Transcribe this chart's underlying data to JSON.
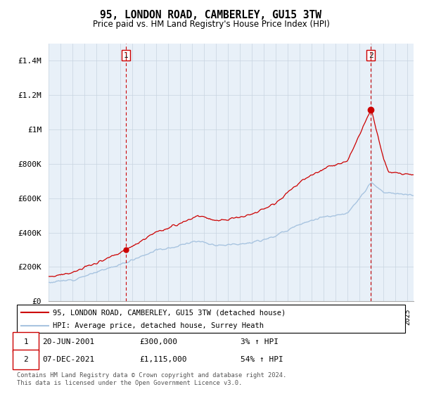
{
  "title": "95, LONDON ROAD, CAMBERLEY, GU15 3TW",
  "subtitle": "Price paid vs. HM Land Registry's House Price Index (HPI)",
  "ylabel_ticks": [
    "£0",
    "£200K",
    "£400K",
    "£600K",
    "£800K",
    "£1M",
    "£1.2M",
    "£1.4M"
  ],
  "ytick_values": [
    0,
    200000,
    400000,
    600000,
    800000,
    1000000,
    1200000,
    1400000
  ],
  "ylim": [
    0,
    1500000
  ],
  "xlim_start": 1995.0,
  "xlim_end": 2025.5,
  "hpi_color": "#a8c4e0",
  "price_color": "#cc0000",
  "sale1_date": "20-JUN-2001",
  "sale1_price": "£300,000",
  "sale1_hpi": "3% ↑ HPI",
  "sale1_year": 2001.47,
  "sale1_value": 300000,
  "sale2_date": "07-DEC-2021",
  "sale2_price": "£1,115,000",
  "sale2_hpi": "54% ↑ HPI",
  "sale2_year": 2021.93,
  "sale2_value": 1115000,
  "legend_label1": "95, LONDON ROAD, CAMBERLEY, GU15 3TW (detached house)",
  "legend_label2": "HPI: Average price, detached house, Surrey Heath",
  "footnote": "Contains HM Land Registry data © Crown copyright and database right 2024.\nThis data is licensed under the Open Government Licence v3.0.",
  "bg_color": "#ffffff",
  "plot_bg_color": "#e8f0f8",
  "grid_color": "#c8d4e0"
}
